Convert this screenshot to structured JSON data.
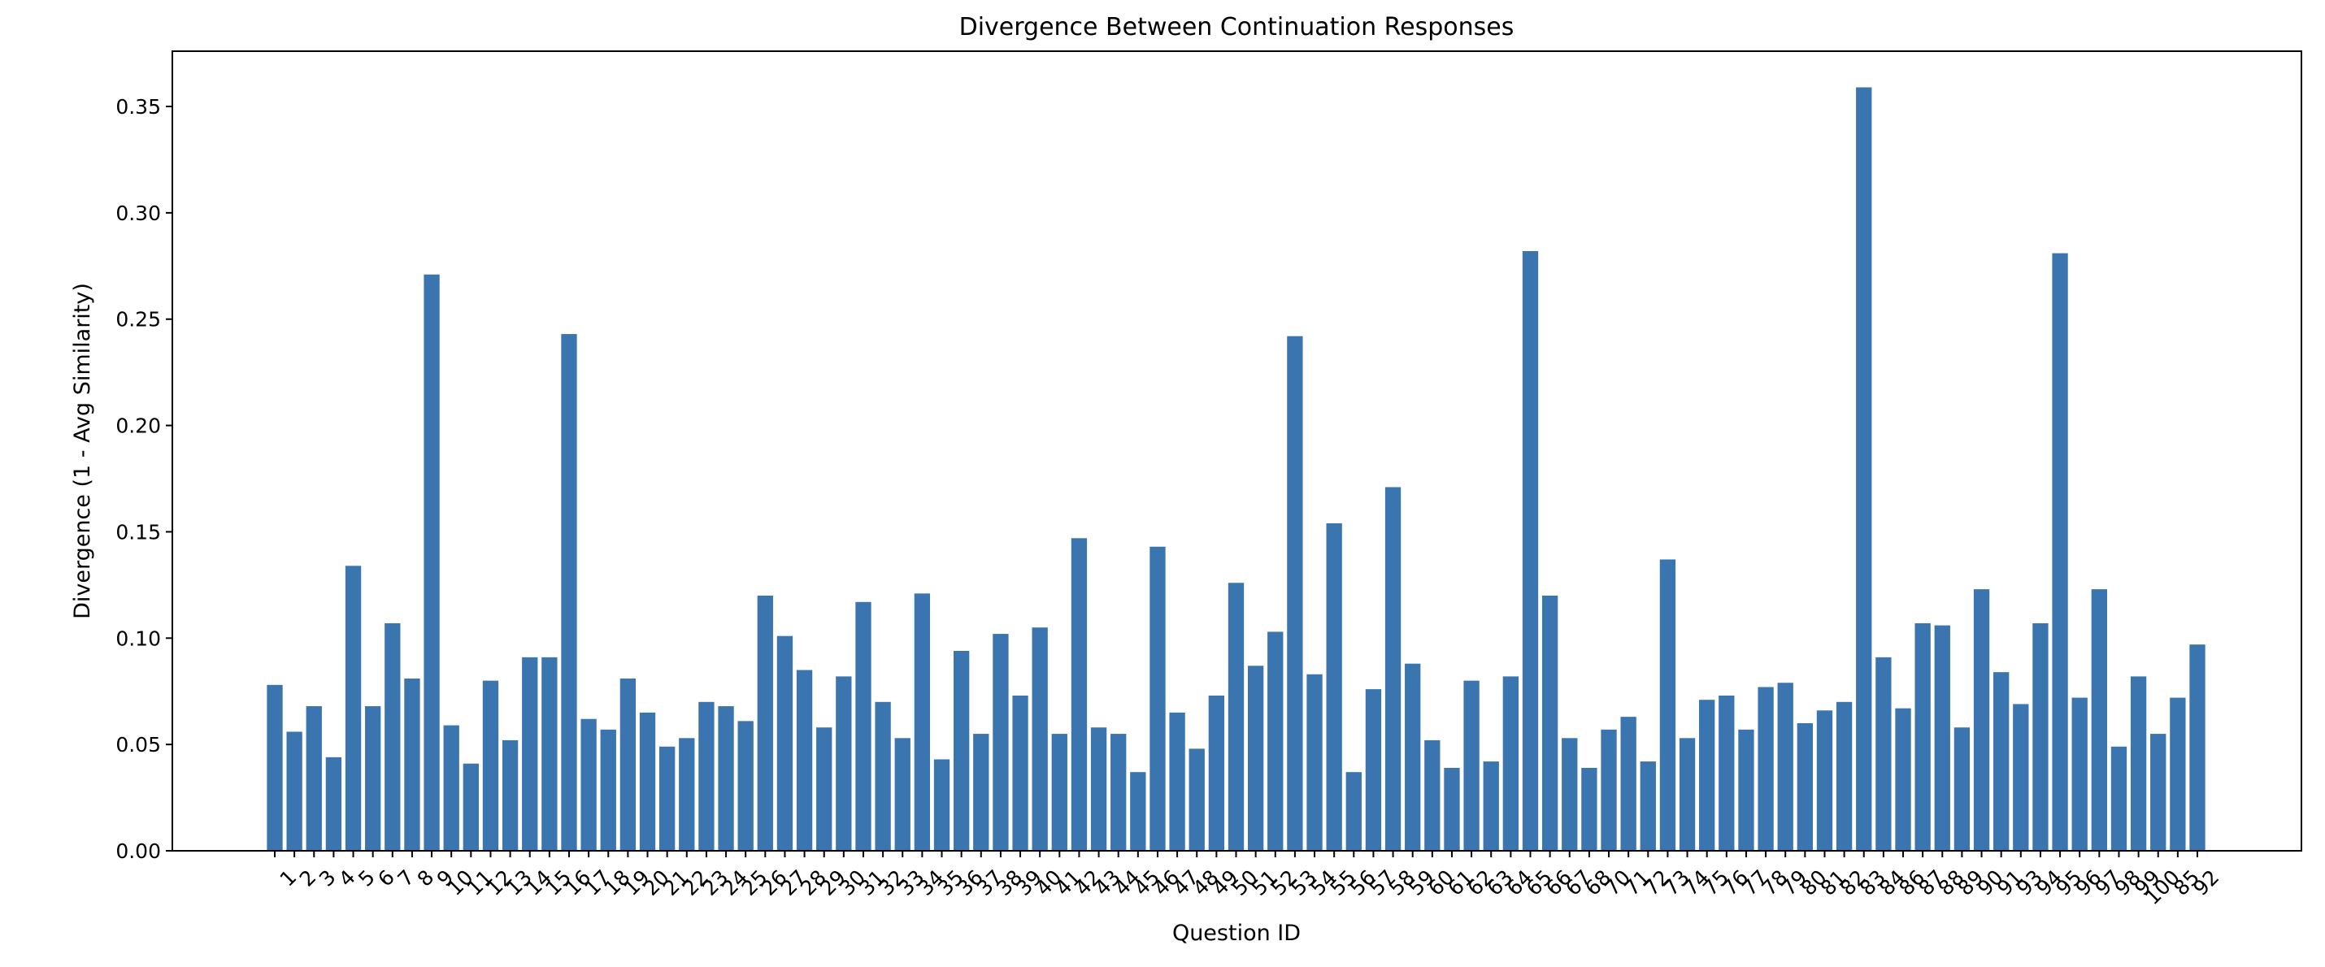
{
  "chart_data": {
    "type": "bar",
    "title": "Divergence Between Continuation Responses",
    "xlabel": "Question ID",
    "ylabel": "Divergence (1 - Avg Similarity)",
    "ylim": [
      0,
      0.376
    ],
    "yticks": [
      "0.00",
      "0.05",
      "0.10",
      "0.15",
      "0.20",
      "0.25",
      "0.30",
      "0.35"
    ],
    "ytick_values": [
      0,
      0.05,
      0.1,
      0.15,
      0.2,
      0.25,
      0.3,
      0.35
    ],
    "grid": false,
    "bar_color": "#3b75af",
    "categories": [
      "1",
      "2",
      "3",
      "4",
      "5",
      "6",
      "7",
      "8",
      "9",
      "10",
      "11",
      "12",
      "13",
      "14",
      "15",
      "16",
      "17",
      "18",
      "19",
      "20",
      "21",
      "22",
      "23",
      "24",
      "25",
      "26",
      "27",
      "28",
      "29",
      "30",
      "31",
      "32",
      "33",
      "34",
      "35",
      "36",
      "37",
      "38",
      "39",
      "40",
      "41",
      "42",
      "43",
      "44",
      "45",
      "46",
      "47",
      "48",
      "49",
      "50",
      "51",
      "52",
      "53",
      "54",
      "55",
      "56",
      "57",
      "58",
      "59",
      "60",
      "61",
      "62",
      "63",
      "64",
      "65",
      "66",
      "67",
      "68",
      "70",
      "71",
      "72",
      "73",
      "74",
      "75",
      "76",
      "77",
      "78",
      "79",
      "80",
      "81",
      "82",
      "83",
      "84",
      "86",
      "87",
      "88",
      "89",
      "90",
      "91",
      "93",
      "94",
      "95",
      "96",
      "97",
      "98",
      "99",
      "100",
      "85",
      "92"
    ],
    "values": [
      0.078,
      0.056,
      0.068,
      0.044,
      0.134,
      0.068,
      0.107,
      0.081,
      0.271,
      0.059,
      0.041,
      0.08,
      0.052,
      0.091,
      0.091,
      0.243,
      0.062,
      0.057,
      0.081,
      0.065,
      0.049,
      0.053,
      0.07,
      0.068,
      0.061,
      0.12,
      0.101,
      0.085,
      0.058,
      0.082,
      0.117,
      0.07,
      0.053,
      0.121,
      0.043,
      0.094,
      0.055,
      0.102,
      0.073,
      0.105,
      0.055,
      0.147,
      0.058,
      0.055,
      0.037,
      0.143,
      0.065,
      0.048,
      0.073,
      0.126,
      0.087,
      0.103,
      0.242,
      0.083,
      0.154,
      0.037,
      0.076,
      0.171,
      0.088,
      0.052,
      0.039,
      0.08,
      0.042,
      0.082,
      0.282,
      0.12,
      0.053,
      0.039,
      0.057,
      0.063,
      0.042,
      0.137,
      0.053,
      0.071,
      0.073,
      0.057,
      0.077,
      0.079,
      0.06,
      0.066,
      0.07,
      0.359,
      0.091,
      0.067,
      0.107,
      0.106,
      0.058,
      0.123,
      0.084,
      0.069,
      0.107,
      0.281,
      0.072,
      0.123,
      0.049,
      0.082,
      0.055,
      0.072,
      0.097
    ]
  }
}
